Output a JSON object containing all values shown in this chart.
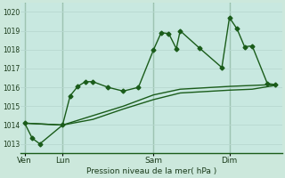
{
  "background_color": "#cce8dc",
  "plot_bg_color": "#c8e8e0",
  "grid_color": "#aad4c8",
  "line_color": "#1a5c1a",
  "title": "Pression niveau de la mer( hPa )",
  "ylim": [
    1012.5,
    1020.5
  ],
  "yticks": [
    1013,
    1014,
    1015,
    1016,
    1017,
    1018,
    1019,
    1020
  ],
  "day_labels": [
    "Ven",
    "Lun",
    "Sam",
    "Dim"
  ],
  "vline_x": [
    0.05,
    0.16,
    0.51,
    0.76
  ],
  "series1_x": [
    0,
    1,
    2,
    5,
    6,
    7,
    8,
    9,
    11,
    13,
    15,
    17,
    18,
    19,
    20,
    20.5,
    23,
    26,
    27,
    28,
    29,
    30,
    32,
    33
  ],
  "series1_y": [
    1014.1,
    1013.3,
    1013.0,
    1014.0,
    1015.55,
    1016.05,
    1016.3,
    1016.3,
    1016.0,
    1015.8,
    1016.0,
    1018.0,
    1018.9,
    1018.85,
    1018.05,
    1019.0,
    1018.1,
    1017.05,
    1019.7,
    1019.1,
    1018.15,
    1018.2,
    1016.2,
    1016.15
  ],
  "series2_x": [
    0,
    5,
    9,
    13,
    17,
    20.5,
    27,
    30,
    33
  ],
  "series2_y": [
    1014.1,
    1014.0,
    1014.5,
    1015.0,
    1015.6,
    1015.9,
    1016.05,
    1016.1,
    1016.15
  ],
  "series3_x": [
    0,
    5,
    9,
    13,
    17,
    20.5,
    27,
    30,
    33
  ],
  "series3_y": [
    1014.1,
    1014.0,
    1014.3,
    1014.85,
    1015.35,
    1015.7,
    1015.85,
    1015.9,
    1016.1
  ],
  "xlim": [
    -0.5,
    34
  ],
  "marker_size": 2.5,
  "linewidth": 1.0,
  "vline_xdata": [
    0,
    5,
    17,
    27
  ]
}
